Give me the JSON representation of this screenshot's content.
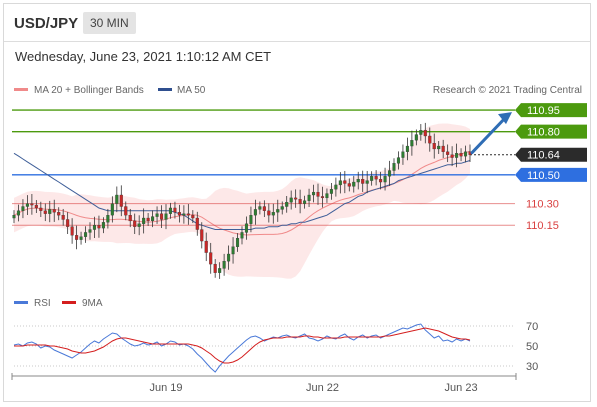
{
  "header": {
    "pair": "USD/JPY",
    "timeframe": "30 MIN"
  },
  "datetime": "Wednesday, June 23, 2021 1:10:12 AM CET",
  "credit": "Research © 2021 Trading Central",
  "colors": {
    "up": "#2e7d32",
    "down": "#c62828",
    "ma50": "#3f5f99",
    "bollinger": "#f6a5a5",
    "resistance": "#4c9a0e",
    "support_blue": "#2e6fe0",
    "support_red": "#d94141",
    "rsi": "#4a79d8",
    "rsi_ma": "#d41e1e",
    "arrow": "#2f6db5"
  },
  "chart_data": [
    {
      "type": "candlestick",
      "legend": [
        {
          "name": "MA 20 + Bollinger Bands",
          "color": "#f08a8a"
        },
        {
          "name": "MA 50",
          "color": "#2f4f8f"
        }
      ],
      "ylim": [
        109.7,
        111.02
      ],
      "x_ticks": [
        "Jun 19",
        "Jun 22",
        "Jun 23"
      ],
      "current_price": 110.64,
      "levels": [
        {
          "value": 110.95,
          "label": "110.95",
          "kind": "resistance"
        },
        {
          "value": 110.8,
          "label": "110.80",
          "kind": "resistance"
        },
        {
          "value": 110.64,
          "label": "110.64",
          "kind": "current"
        },
        {
          "value": 110.5,
          "label": "110.50",
          "kind": "pivot"
        },
        {
          "value": 110.3,
          "label": "110.30",
          "kind": "support"
        },
        {
          "value": 110.15,
          "label": "110.15",
          "kind": "support"
        }
      ],
      "close": [
        110.22,
        110.25,
        110.28,
        110.3,
        110.29,
        110.27,
        110.25,
        110.23,
        110.26,
        110.24,
        110.22,
        110.19,
        110.14,
        110.08,
        110.05,
        110.07,
        110.1,
        110.12,
        110.15,
        110.13,
        110.17,
        110.22,
        110.3,
        110.36,
        110.28,
        110.22,
        110.18,
        110.14,
        110.16,
        110.2,
        110.18,
        110.21,
        110.23,
        110.19,
        110.23,
        110.27,
        110.24,
        110.22,
        110.23,
        110.22,
        110.2,
        110.12,
        110.04,
        109.96,
        109.88,
        109.82,
        109.85,
        109.9,
        109.95,
        110.0,
        110.06,
        110.1,
        110.16,
        110.22,
        110.26,
        110.28,
        110.25,
        110.22,
        110.24,
        110.26,
        110.28,
        110.31,
        110.34,
        110.33,
        110.3,
        110.32,
        110.36,
        110.38,
        110.35,
        110.34,
        110.37,
        110.4,
        110.43,
        110.46,
        110.44,
        110.42,
        110.45,
        110.47,
        110.44,
        110.46,
        110.49,
        110.47,
        110.45,
        110.49,
        110.53,
        110.58,
        110.62,
        110.66,
        110.7,
        110.74,
        110.78,
        110.81,
        110.77,
        110.72,
        110.68,
        110.7,
        110.66,
        110.64,
        110.62,
        110.65,
        110.63,
        110.66,
        110.64
      ],
      "ma50": [
        110.65,
        110.63,
        110.61,
        110.59,
        110.57,
        110.55,
        110.53,
        110.51,
        110.49,
        110.47,
        110.45,
        110.43,
        110.41,
        110.39,
        110.37,
        110.35,
        110.33,
        110.31,
        110.29,
        110.27,
        110.26,
        110.25,
        110.25,
        110.25,
        110.25,
        110.25,
        110.25,
        110.25,
        110.25,
        110.25,
        110.25,
        110.25,
        110.25,
        110.25,
        110.25,
        110.25,
        110.24,
        110.23,
        110.22,
        110.2,
        110.18,
        110.16,
        110.15,
        110.14,
        110.13,
        110.12,
        110.12,
        110.12,
        110.12,
        110.12,
        110.12,
        110.12,
        110.12,
        110.12,
        110.13,
        110.13,
        110.13,
        110.14,
        110.14,
        110.14,
        110.15,
        110.15,
        110.16,
        110.16,
        110.17,
        110.17,
        110.18,
        110.19,
        110.2,
        110.21,
        110.22,
        110.24,
        110.26,
        110.28,
        110.3,
        110.31,
        110.33,
        110.35,
        110.36,
        110.38,
        110.39,
        110.4,
        110.41,
        110.42,
        110.43,
        110.44,
        110.46,
        110.47,
        110.48,
        110.49,
        110.5,
        110.51,
        110.52,
        110.53,
        110.54,
        110.55,
        110.56,
        110.57,
        110.57,
        110.58,
        110.58,
        110.59,
        110.6
      ]
    },
    {
      "type": "line",
      "legend": [
        {
          "name": "RSI",
          "color": "#4a79d8"
        },
        {
          "name": "9MA",
          "color": "#d41e1e"
        }
      ],
      "ylim": [
        20,
        80
      ],
      "y_ticks": [
        "70",
        "50",
        "30"
      ],
      "series": [
        {
          "name": "RSI",
          "values": [
            51,
            52,
            50,
            53,
            54,
            52,
            48,
            50,
            49,
            46,
            44,
            42,
            40,
            38,
            41,
            44,
            48,
            52,
            55,
            53,
            57,
            60,
            63,
            62,
            58,
            55,
            52,
            50,
            51,
            53,
            51,
            52,
            54,
            50,
            52,
            55,
            54,
            51,
            52,
            50,
            47,
            42,
            38,
            33,
            28,
            24,
            30,
            35,
            40,
            44,
            48,
            52,
            56,
            59,
            60,
            58,
            55,
            57,
            59,
            58,
            60,
            61,
            59,
            58,
            60,
            62,
            58,
            57,
            55,
            57,
            60,
            58,
            57,
            60,
            62,
            58,
            56,
            59,
            61,
            58,
            60,
            61,
            58,
            60,
            62,
            64,
            66,
            68,
            67,
            69,
            71,
            72,
            66,
            62,
            58,
            60,
            55,
            56,
            54,
            57,
            55,
            57,
            55
          ]
        },
        {
          "name": "9MA",
          "values": [
            50,
            50,
            50,
            51,
            51,
            51,
            51,
            51,
            50,
            50,
            49,
            48,
            47,
            45,
            44,
            43,
            43,
            44,
            45,
            47,
            49,
            52,
            55,
            57,
            58,
            58,
            57,
            56,
            55,
            54,
            53,
            52,
            52,
            52,
            52,
            52,
            52,
            52,
            52,
            52,
            51,
            50,
            48,
            45,
            42,
            38,
            35,
            33,
            33,
            34,
            36,
            39,
            43,
            47,
            51,
            54,
            56,
            57,
            58,
            58,
            58,
            59,
            59,
            59,
            59,
            60,
            60,
            59,
            59,
            58,
            58,
            58,
            58,
            58,
            59,
            59,
            59,
            59,
            59,
            59,
            59,
            59,
            59,
            60,
            60,
            61,
            62,
            63,
            64,
            65,
            66,
            67,
            68,
            67,
            66,
            65,
            63,
            61,
            59,
            58,
            57,
            57,
            56
          ]
        }
      ]
    }
  ]
}
